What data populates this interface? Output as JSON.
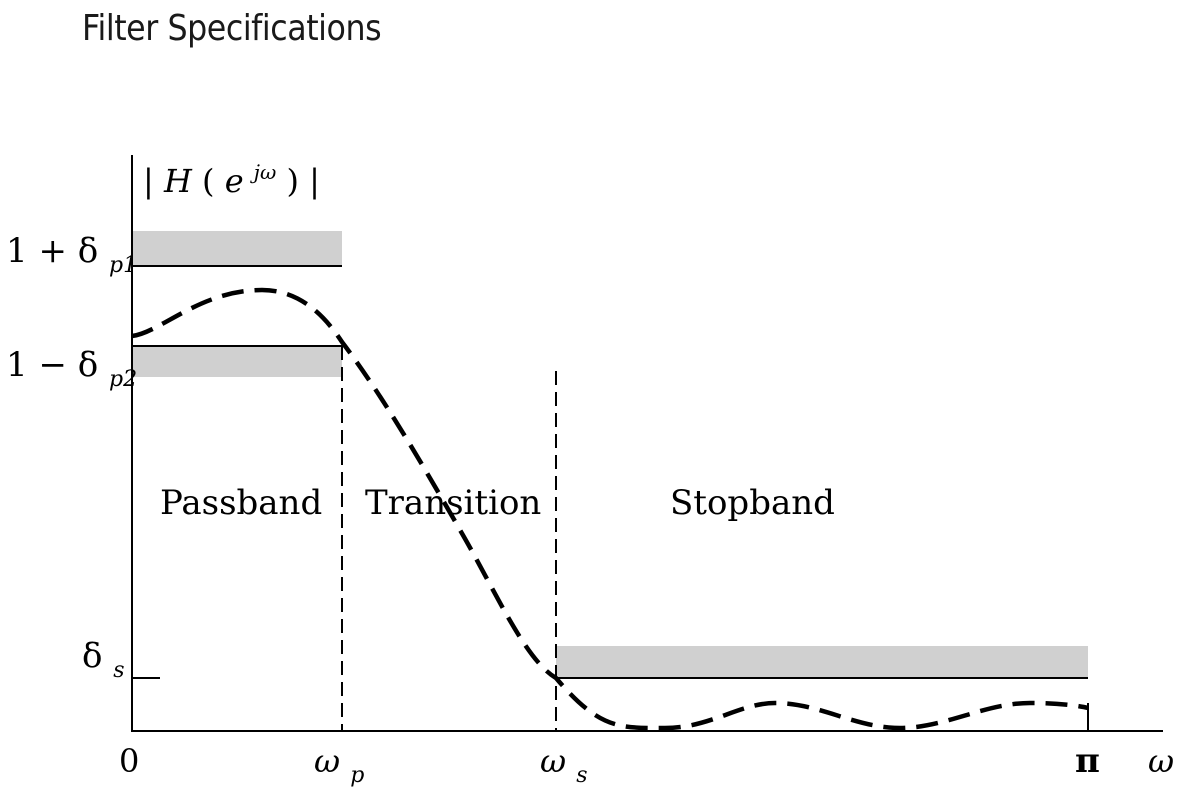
{
  "title": "Filter Specifications",
  "colors": {
    "band": "#d0d0d0",
    "line": "#000000",
    "curve": "#000000"
  },
  "y_axis_label": {
    "open": "|",
    "func": "H",
    "paren_open": "(",
    "base": "e",
    "exponent": "jω",
    "paren_close": ")",
    "close": "|"
  },
  "y_ticks": {
    "upper": {
      "prefix": "1 + δ",
      "subscript": "p1"
    },
    "lower": {
      "prefix": "1 − δ",
      "subscript": "p2"
    },
    "stop": {
      "prefix": "δ",
      "subscript": "s"
    }
  },
  "x_ticks": {
    "zero": "0",
    "wp": {
      "symbol": "ω",
      "subscript": "p"
    },
    "ws": {
      "symbol": "ω",
      "subscript": "s"
    },
    "pi": "π",
    "axis": "ω"
  },
  "regions": {
    "passband": "Passband",
    "transition": "Transition",
    "stopband": "Stopband"
  }
}
